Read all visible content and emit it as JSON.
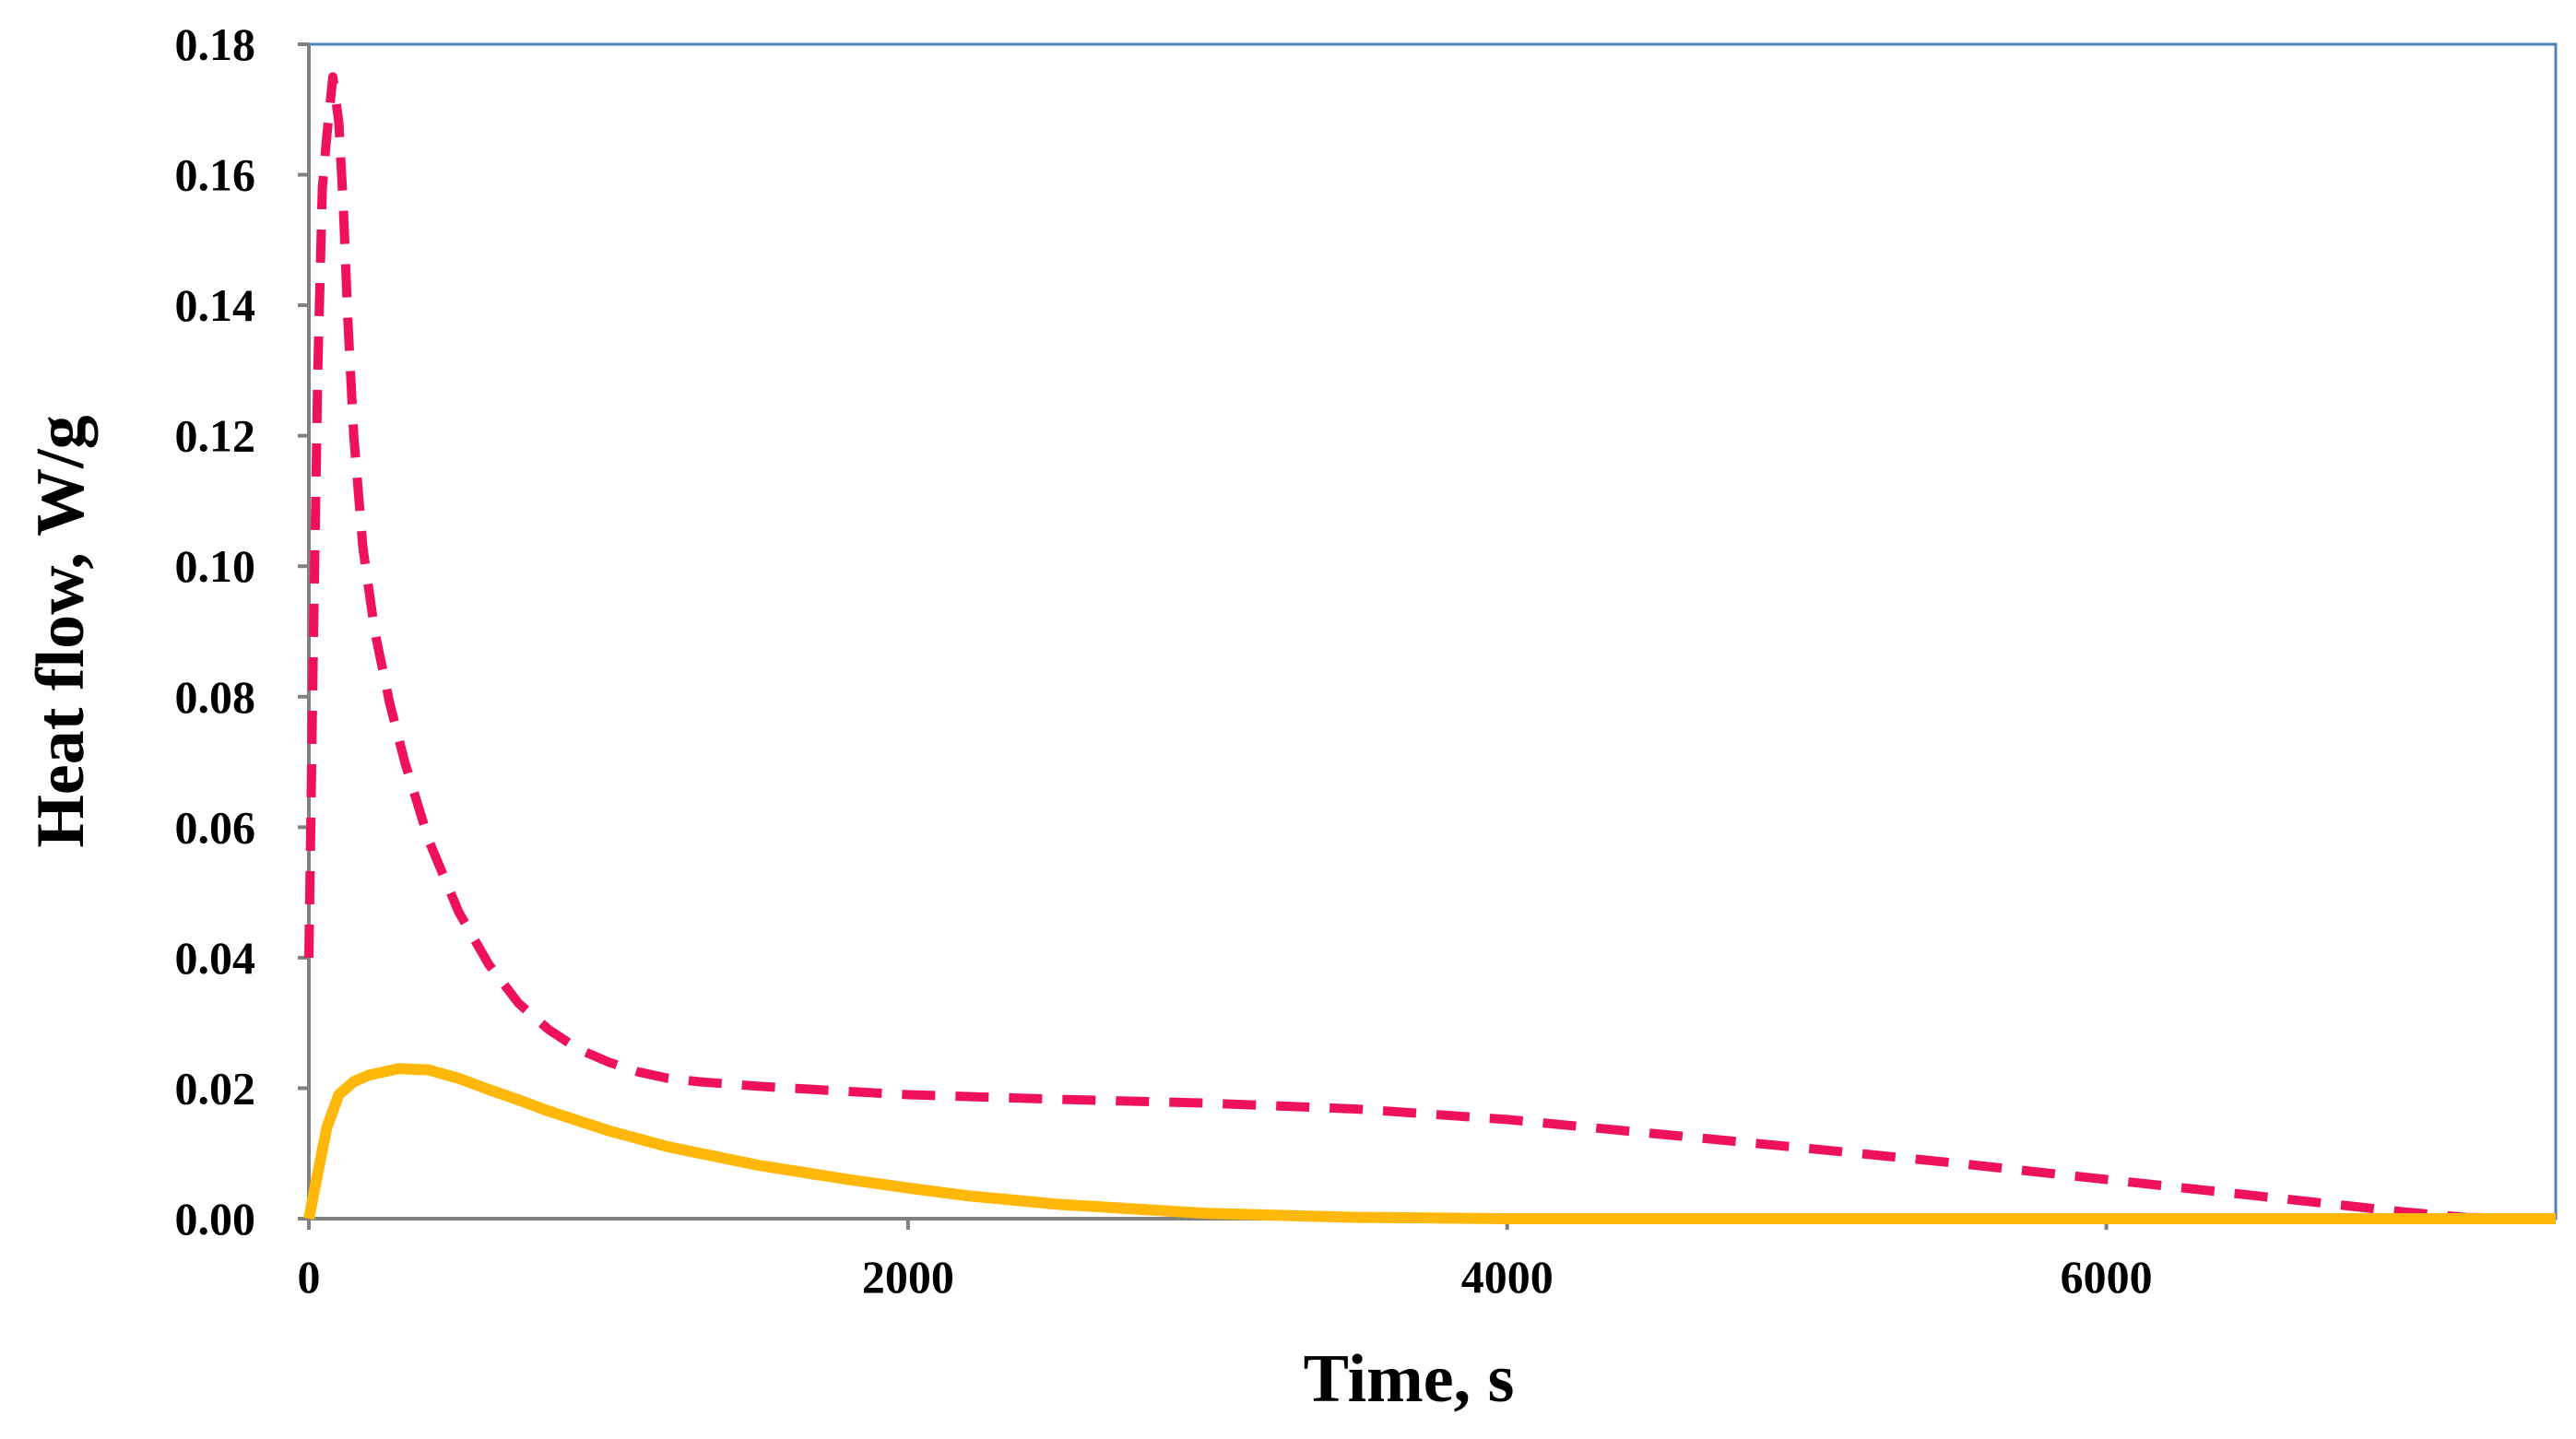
{
  "chart_data": {
    "type": "line",
    "title": "",
    "xlabel": "Time, s",
    "ylabel": "Heat flow, W/g",
    "xlim": [
      0,
      7500
    ],
    "ylim": [
      0,
      0.18
    ],
    "x_ticks": [
      "0",
      "2000",
      "4000",
      "6000"
    ],
    "y_ticks": [
      "0.00",
      "0.02",
      "0.04",
      "0.06",
      "0.08",
      "0.10",
      "0.12",
      "0.14",
      "0.16",
      "0.18"
    ],
    "grid": false,
    "legend": "none",
    "colors": {
      "dashed_series": "#f0115c",
      "solid_series": "#ffb80a",
      "frame": "#4f81bd",
      "axes": "#808080"
    },
    "series": [
      {
        "style": "dashed",
        "x": [
          0,
          15,
          30,
          45,
          60,
          80,
          100,
          115,
          130,
          150,
          180,
          220,
          270,
          320,
          400,
          500,
          600,
          700,
          800,
          900,
          1000,
          1100,
          1200,
          1300,
          1500,
          1800,
          2000,
          2500,
          3000,
          3500,
          4000,
          4500,
          5000,
          5500,
          6000,
          6500,
          7000,
          7200,
          7500
        ],
        "values": [
          0.04,
          0.088,
          0.13,
          0.158,
          0.166,
          0.175,
          0.168,
          0.155,
          0.138,
          0.12,
          0.103,
          0.09,
          0.079,
          0.07,
          0.058,
          0.047,
          0.039,
          0.033,
          0.029,
          0.026,
          0.024,
          0.0225,
          0.0215,
          0.021,
          0.0203,
          0.0195,
          0.019,
          0.0183,
          0.0177,
          0.0168,
          0.0152,
          0.013,
          0.0108,
          0.0085,
          0.006,
          0.0035,
          0.001,
          0.0002,
          0.0
        ]
      },
      {
        "style": "solid",
        "x": [
          0,
          30,
          60,
          100,
          150,
          200,
          300,
          400,
          500,
          600,
          700,
          800,
          1000,
          1200,
          1500,
          1800,
          2000,
          2200,
          2500,
          3000,
          3500,
          4000,
          5000,
          6000,
          7000,
          7500
        ],
        "values": [
          0.0,
          0.007,
          0.014,
          0.019,
          0.021,
          0.022,
          0.023,
          0.0228,
          0.0215,
          0.0198,
          0.0182,
          0.0165,
          0.0135,
          0.011,
          0.0082,
          0.006,
          0.0047,
          0.0035,
          0.0022,
          0.0008,
          0.0002,
          0.0,
          0.0,
          0.0,
          0.0,
          0.0
        ]
      }
    ]
  }
}
